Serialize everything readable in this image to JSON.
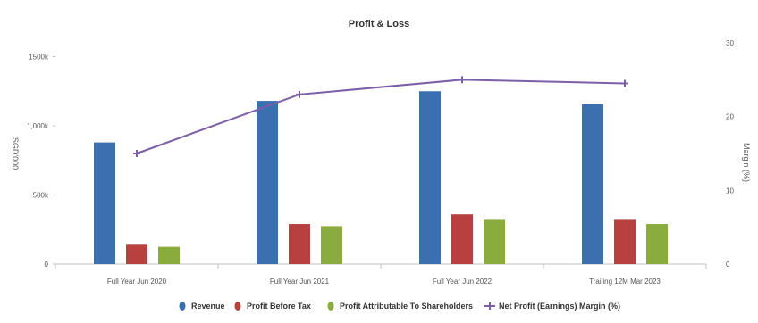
{
  "chart_data": {
    "type": "bar",
    "title": "Profit & Loss",
    "categories": [
      "Full Year Jun 2020",
      "Full Year Jun 2021",
      "Full Year Jun 2022",
      "Trailing 12M Mar 2023"
    ],
    "ylabel_left": "SGD'000",
    "ylabel_right": "Margin (%)",
    "ylim_left": [
      0,
      1600
    ],
    "ylim_right": [
      0,
      30
    ],
    "yticks_left": [
      "0",
      "500k",
      "1,000k",
      "1500k"
    ],
    "yticks_right": [
      "0",
      "10",
      "20",
      "30"
    ],
    "series": [
      {
        "name": "Revenue",
        "kind": "bar",
        "axis": "left",
        "color": "#3a6fb0",
        "values": [
          880,
          1180,
          1250,
          1155
        ]
      },
      {
        "name": "Profit Before Tax",
        "kind": "bar",
        "axis": "left",
        "color": "#b8403f",
        "values": [
          140,
          290,
          360,
          320
        ]
      },
      {
        "name": "Profit Attributable To Shareholders",
        "kind": "bar",
        "axis": "left",
        "color": "#8aac3c",
        "values": [
          125,
          275,
          320,
          290
        ]
      },
      {
        "name": "Net Profit (Earnings) Margin (%)",
        "kind": "line",
        "axis": "right",
        "color": "#7d5fa8",
        "values": [
          15,
          23,
          25,
          24.5
        ]
      }
    ],
    "grid": false,
    "legend_position": "bottom"
  }
}
